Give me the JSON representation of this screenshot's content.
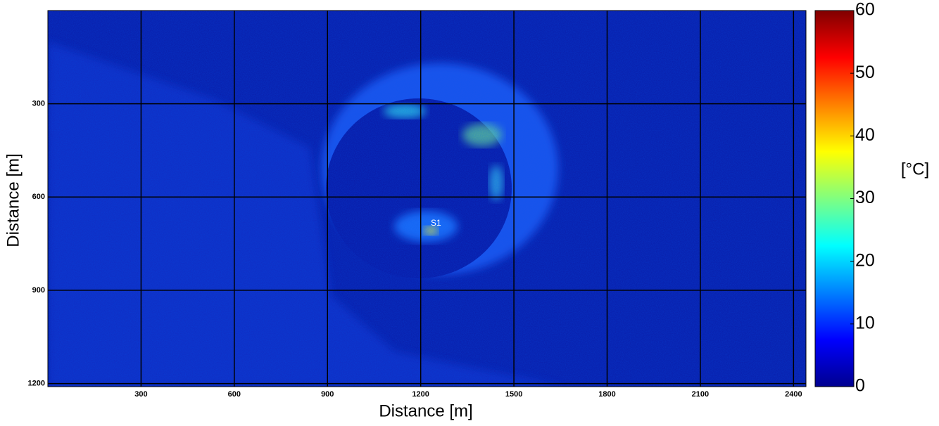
{
  "chart_data": {
    "type": "heatmap",
    "xlabel": "Distance [m]",
    "ylabel": "Distance [m]",
    "xlim": [
      0,
      2440
    ],
    "xticks": [
      300,
      600,
      900,
      1200,
      1500,
      1800,
      2100,
      2400
    ],
    "ylim": [
      1210,
      0
    ],
    "yticks": [
      300,
      600,
      900,
      1200
    ],
    "grid": true,
    "annotations": [
      "S1"
    ],
    "colorbar": {
      "label": "[°C]",
      "lim": [
        0,
        60
      ],
      "ticks": [
        0,
        10,
        20,
        30,
        40,
        50,
        60
      ],
      "colormap": "jet"
    }
  }
}
